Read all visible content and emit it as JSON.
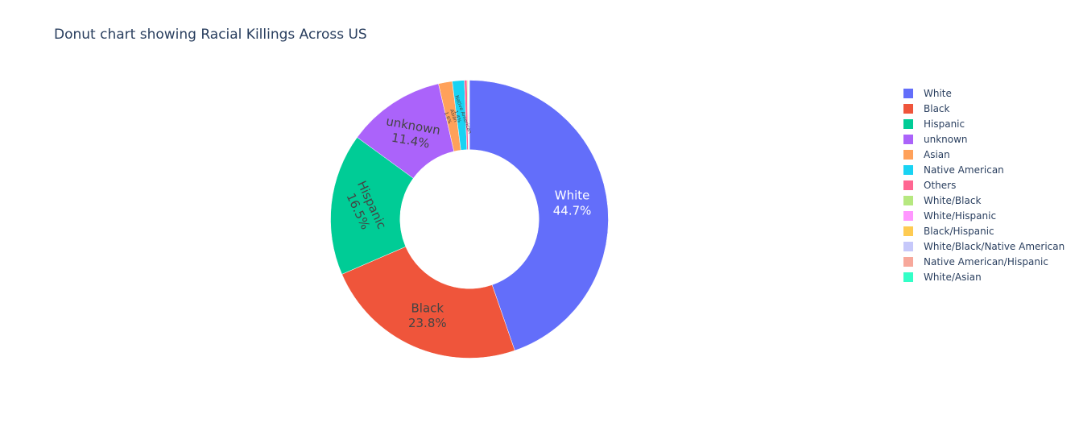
{
  "title": "Donut chart showing Racial Killings Across US",
  "chart_data": {
    "type": "pie",
    "hole": 0.5,
    "sort_direction": "clockwise",
    "start_angle_deg": 90,
    "labels": [
      "White",
      "Black",
      "Hispanic",
      "unknown",
      "Asian",
      "Native American",
      "Others",
      "White/Black",
      "White/Hispanic",
      "Black/Hispanic",
      "White/Black/Native American",
      "Native American/Hispanic",
      "White/Asian"
    ],
    "values": [
      44.7,
      23.8,
      16.5,
      11.4,
      1.6,
      1.4,
      0.3,
      0.1,
      0.05,
      0.05,
      0.03,
      0.03,
      0.02
    ],
    "percent_labels": [
      "44.7%",
      "23.8%",
      "16.5%",
      "11.4%",
      "1.6%",
      "1.4%",
      "",
      "",
      "",
      "",
      "",
      "",
      ""
    ],
    "colors": [
      "#636efa",
      "#EF553B",
      "#00cc96",
      "#ab63fa",
      "#FFA15A",
      "#19d3f3",
      "#FF6692",
      "#B6E880",
      "#FF97FF",
      "#FECB52",
      "#c6c8fa",
      "#f7a89b",
      "#33ffc7"
    ],
    "legend": {
      "position": "right"
    }
  }
}
